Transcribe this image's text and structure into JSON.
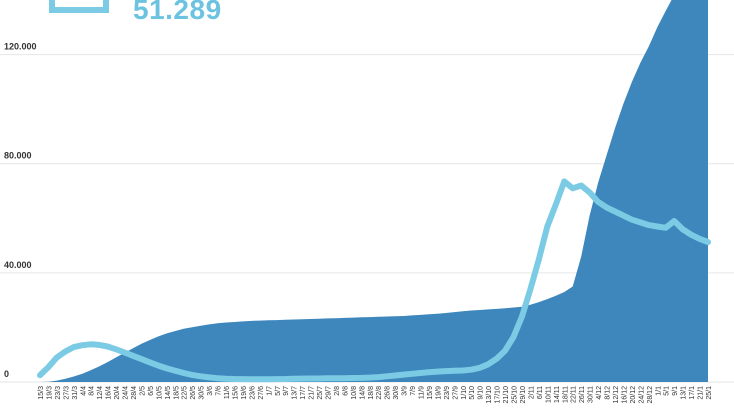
{
  "header": {
    "value": "51.289",
    "icon": "bracket-legend-icon"
  },
  "colors": {
    "area": "#3d87bd",
    "line": "#7ccbe4",
    "grid": "#e6e6e6",
    "text": "#333333"
  },
  "chart_data": {
    "type": "area",
    "title": "",
    "xlabel": "",
    "ylabel": "",
    "ylim": [
      0,
      140000
    ],
    "yticks": [
      0,
      40000,
      80000,
      120000
    ],
    "ytick_labels": [
      "0",
      "40.000",
      "80.000",
      "120.000"
    ],
    "grid": true,
    "xtick_labels": [
      "15/3",
      "19/3",
      "23/3",
      "27/3",
      "31/3",
      "4/4",
      "8/4",
      "12/4",
      "16/4",
      "20/4",
      "24/4",
      "28/4",
      "2/5",
      "6/5",
      "10/5",
      "14/5",
      "18/5",
      "22/5",
      "26/5",
      "30/5",
      "3/6",
      "7/6",
      "11/6",
      "15/6",
      "19/6",
      "23/6",
      "27/6",
      "1/7",
      "5/7",
      "9/7",
      "13/7",
      "17/7",
      "21/7",
      "25/7",
      "29/7",
      "2/8",
      "6/8",
      "10/8",
      "14/8",
      "18/8",
      "22/8",
      "26/8",
      "30/8",
      "3/9",
      "7/9",
      "11/9",
      "15/9",
      "19/9",
      "23/9",
      "27/9",
      "1/10",
      "5/10",
      "9/10",
      "13/10",
      "17/10",
      "21/10",
      "25/10",
      "29/10",
      "2/11",
      "6/11",
      "10/11",
      "14/11",
      "18/11",
      "22/11",
      "26/11",
      "30/11",
      "4/12",
      "8/12",
      "12/12",
      "16/12",
      "20/12",
      "24/12",
      "28/12",
      "1/1",
      "5/1",
      "9/1",
      "13/1",
      "17/1",
      "21/1",
      "25/1"
    ],
    "series": [
      {
        "style": "area",
        "values": [
          0,
          100,
          500,
          1200,
          2000,
          3000,
          4300,
          5700,
          7300,
          9000,
          10700,
          12400,
          14000,
          15400,
          16700,
          17800,
          18700,
          19500,
          20100,
          20600,
          21100,
          21500,
          21800,
          22000,
          22200,
          22400,
          22500,
          22600,
          22700,
          22800,
          22900,
          23000,
          23100,
          23200,
          23300,
          23400,
          23500,
          23600,
          23700,
          23800,
          23900,
          24000,
          24100,
          24200,
          24400,
          24600,
          24800,
          25000,
          25300,
          25600,
          25900,
          26200,
          26400,
          26600,
          26800,
          27000,
          27300,
          27600,
          28300,
          29300,
          30400,
          31600,
          33000,
          35000,
          46000,
          61000,
          73000,
          83000,
          93000,
          102000,
          110000,
          117000,
          123000,
          130000,
          136000,
          142000,
          148000,
          153000,
          158000,
          164000
        ]
      },
      {
        "style": "line",
        "values": [
          2500,
          5500,
          9000,
          11200,
          12800,
          13500,
          13800,
          13600,
          13000,
          12000,
          10800,
          9600,
          8400,
          7200,
          6000,
          5000,
          4100,
          3300,
          2600,
          2100,
          1700,
          1400,
          1200,
          1100,
          1050,
          1000,
          1000,
          1000,
          1050,
          1100,
          1200,
          1250,
          1300,
          1300,
          1350,
          1350,
          1400,
          1450,
          1500,
          1600,
          1800,
          2100,
          2400,
          2700,
          3000,
          3300,
          3600,
          3800,
          4000,
          4100,
          4200,
          4500,
          5200,
          6500,
          8500,
          11500,
          16500,
          24000,
          34000,
          45000,
          57000,
          65000,
          73500,
          71000,
          72000,
          69500,
          66000,
          64000,
          62500,
          61000,
          59500,
          58500,
          57500,
          57000,
          56500,
          59000,
          56000,
          54000,
          52500,
          51289
        ]
      }
    ]
  }
}
